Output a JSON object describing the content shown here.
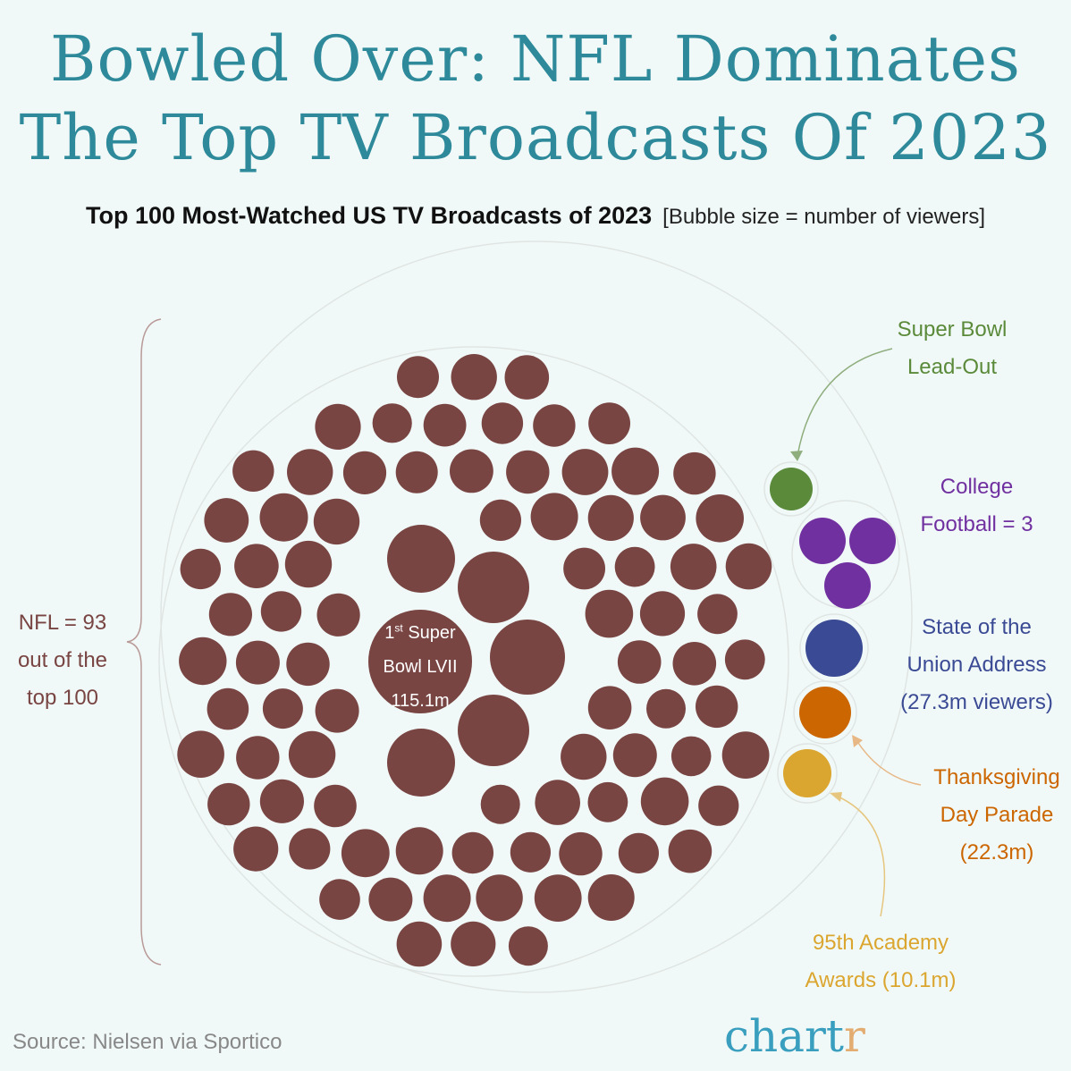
{
  "title_line1": "Bowled Over: NFL Dominates",
  "title_line2": "The Top TV Broadcasts Of 2023",
  "subtitle": "Top 100 Most-Watched US TV Broadcasts of 2023",
  "subtitle_note": "[Bubble size = number of viewers]",
  "source": "Source: Nielsen via Sportico",
  "logo": {
    "main": "chart",
    "accent": "r"
  },
  "chart_data": {
    "type": "bubble",
    "title": "Top 100 Most-Watched US TV Broadcasts of 2023",
    "size_encoding": "number of viewers",
    "groups": [
      {
        "name": "NFL",
        "count": 93,
        "color": "#784543",
        "label_lines": [
          "NFL = 93",
          "out of the",
          "top 100"
        ],
        "highlight": {
          "lines": [
            "1st Super",
            "Bowl LVII",
            "115.1m"
          ],
          "viewers_m": 115.1
        }
      },
      {
        "name": "Super Bowl Lead-Out",
        "count": 1,
        "color": "#5a8a3a",
        "label_lines": [
          "Super Bowl",
          "Lead-Out"
        ]
      },
      {
        "name": "College Football",
        "count": 3,
        "color": "#7030a0",
        "label_lines": [
          "College",
          "Football = 3"
        ]
      },
      {
        "name": "State of the Union Address",
        "count": 1,
        "color": "#3a4a94",
        "viewers_m": 27.3,
        "label_lines": [
          "State of the",
          "Union Address",
          "(27.3m viewers)"
        ]
      },
      {
        "name": "Thanksgiving Day Parade",
        "count": 1,
        "color": "#cc6600",
        "viewers_m": 22.3,
        "label_lines": [
          "Thanksgiving",
          "Day Parade",
          "(22.3m)"
        ]
      },
      {
        "name": "95th Academy Awards",
        "count": 1,
        "color": "#dba630",
        "viewers_m": 10.1,
        "label_lines": [
          "95th Academy",
          "Awards (10.1m)"
        ]
      }
    ]
  }
}
